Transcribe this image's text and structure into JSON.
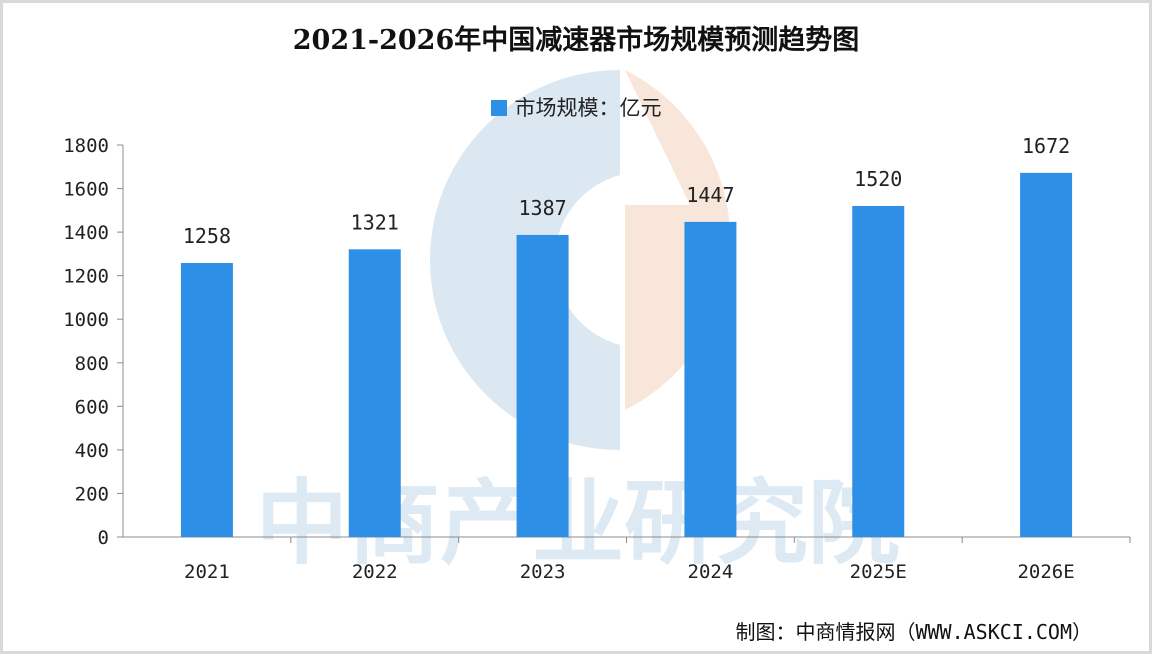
{
  "chart_data": {
    "type": "bar",
    "title": "2021-2026年中国减速器市场规模预测趋势图",
    "legend": "市场规模：亿元",
    "categories": [
      "2021",
      "2022",
      "2023",
      "2024",
      "2025E",
      "2026E"
    ],
    "series": [
      {
        "name": "市场规模：亿元",
        "values": [
          1258,
          1321,
          1387,
          1447,
          1520,
          1672
        ]
      }
    ],
    "ylim": [
      0,
      1800
    ],
    "yticks": [
      0,
      200,
      400,
      600,
      800,
      1000,
      1200,
      1400,
      1600,
      1800
    ],
    "grid": false,
    "legend_position": "top-center",
    "bar_color": "#2e8fe6"
  },
  "watermark": {
    "text": "中商产业研究院",
    "logo_colors": [
      "#cfe0ee",
      "#f7dccb"
    ]
  },
  "source": "制图：中商情报网（WWW.ASKCI.COM）"
}
